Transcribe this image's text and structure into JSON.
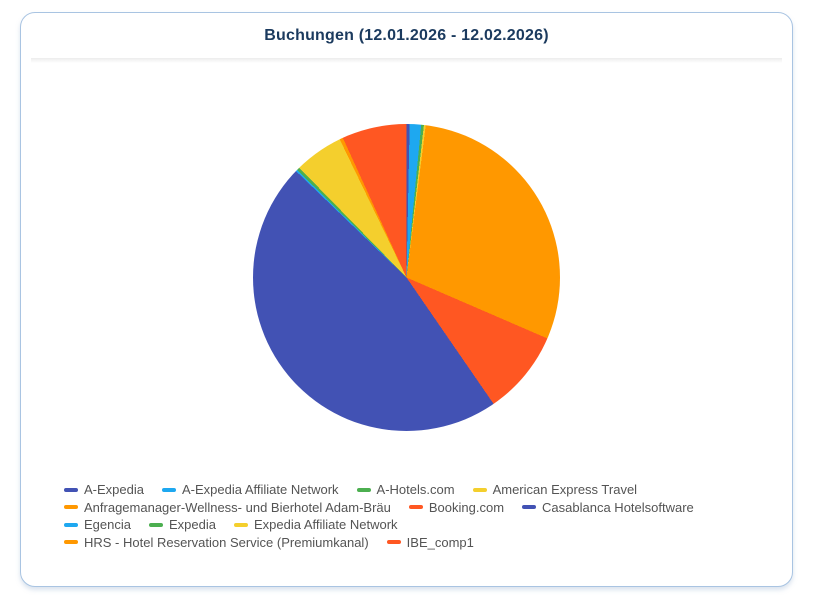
{
  "chart_data": {
    "type": "pie",
    "title": "Buchungen (12.01.2026 - 12.02.2026)",
    "title_color": "#1b3a5e",
    "legend_position": "bottom-left",
    "legend_text_color": "#545454",
    "start_angle_deg": 0,
    "direction": "clockwise",
    "values_unit": "percent share (estimated from slice angles)",
    "series": [
      {
        "name": "A-Expedia",
        "value": 0.33,
        "color": "#4252b4"
      },
      {
        "name": "A-Expedia Affiliate Network",
        "value": 1.2,
        "color": "#1ea8f0"
      },
      {
        "name": "A-Hotels.com",
        "value": 0.28,
        "color": "#4caf50"
      },
      {
        "name": "American Express Travel",
        "value": 0.19,
        "color": "#f4cf2d"
      },
      {
        "name": "Anfragemanager-Wellness- und Bierhotel Adam-Bräu",
        "value": 29.5,
        "color": "#ff9800"
      },
      {
        "name": "Booking.com",
        "value": 8.9,
        "color": "#ff5722"
      },
      {
        "name": "Casablanca Hotelsoftware",
        "value": 46.8,
        "color": "#4252b4"
      },
      {
        "name": "Egencia",
        "value": 0.17,
        "color": "#1ea8f0"
      },
      {
        "name": "Expedia",
        "value": 0.31,
        "color": "#4caf50"
      },
      {
        "name": "Expedia Affiliate Network",
        "value": 5.15,
        "color": "#f4cf2d"
      },
      {
        "name": "HRS - Hotel Reservation Service (Premiumkanal)",
        "value": 0.36,
        "color": "#ff9800"
      },
      {
        "name": "IBE_comp1",
        "value": 6.81,
        "color": "#ff5722"
      }
    ],
    "legend_rows": [
      [
        0,
        1,
        2,
        3
      ],
      [
        4,
        5,
        6
      ],
      [
        7,
        8,
        9
      ],
      [
        10,
        11
      ]
    ]
  },
  "card": {
    "border_color": "#a9c4e2"
  }
}
